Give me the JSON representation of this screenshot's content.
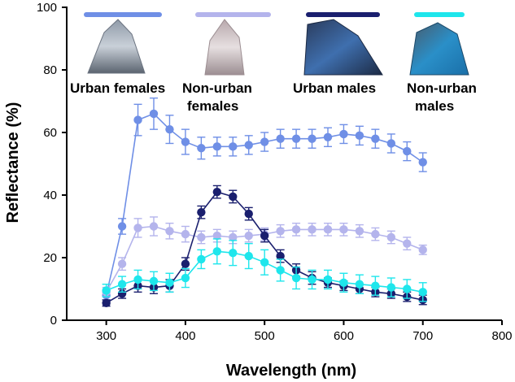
{
  "chart_data": {
    "type": "line",
    "xlabel": "Wavelength (nm)",
    "ylabel": "Reflectance (%)",
    "xlim": [
      250,
      800
    ],
    "ylim": [
      0,
      100
    ],
    "xticks": [
      300,
      400,
      500,
      600,
      700,
      800
    ],
    "yticks": [
      0,
      20,
      40,
      60,
      80,
      100
    ],
    "grid": false,
    "x": [
      300,
      320,
      340,
      360,
      380,
      400,
      420,
      440,
      460,
      480,
      500,
      520,
      540,
      560,
      580,
      600,
      620,
      640,
      660,
      680,
      700
    ],
    "series": [
      {
        "name": "Urban females",
        "color": "#6f8fe6",
        "values": [
          8,
          30,
          64,
          66,
          61,
          57,
          55,
          55.5,
          55.5,
          56,
          57,
          58,
          58,
          58,
          58.5,
          59.5,
          59,
          58,
          56.5,
          54,
          50.5
        ],
        "errors": [
          1.5,
          2.5,
          5,
          5,
          4.5,
          4,
          3.5,
          3,
          3,
          3,
          3,
          3,
          3,
          3,
          3,
          3,
          3,
          3,
          3,
          3,
          3
        ]
      },
      {
        "name": "Non-urban females",
        "color": "#b4b4ec",
        "values": [
          9,
          18,
          29.5,
          30,
          28.5,
          27.5,
          26.5,
          27,
          26.5,
          27,
          27.5,
          28.5,
          29,
          29,
          29,
          29,
          28.5,
          27.5,
          26.5,
          24.5,
          22.5
        ],
        "errors": [
          1.5,
          2,
          3,
          3,
          2.5,
          2.5,
          2,
          2,
          2,
          2,
          2,
          2,
          2,
          2,
          2,
          2,
          2,
          2,
          2,
          2,
          1.5
        ]
      },
      {
        "name": "Urban males",
        "color": "#1a1f6e",
        "values": [
          5.5,
          8.5,
          11,
          10.5,
          11,
          18,
          34.5,
          41,
          39.5,
          34,
          27,
          20.5,
          16,
          13.5,
          12,
          11,
          10,
          9,
          8.5,
          7.5,
          6.5
        ],
        "errors": [
          1,
          1.5,
          2,
          2,
          2,
          2,
          2,
          2,
          2,
          2,
          2,
          2,
          2,
          2,
          1.5,
          1.5,
          1.5,
          1.5,
          1.5,
          1.5,
          1.5
        ]
      },
      {
        "name": "Non-urban males",
        "color": "#1ee6ec",
        "values": [
          9.5,
          11.5,
          13,
          12.5,
          12,
          13.5,
          19.5,
          22,
          21.5,
          20.5,
          18.5,
          16,
          13.5,
          13,
          13,
          12,
          11.5,
          11,
          10.5,
          10,
          9
        ],
        "errors": [
          2,
          2.5,
          3,
          3,
          3,
          3,
          3,
          4,
          4,
          4,
          4,
          3.5,
          3.5,
          3,
          3,
          3,
          3,
          3,
          3,
          3,
          3
        ]
      }
    ],
    "legend": [
      {
        "label": "Urban females",
        "color": "#6f8fe6",
        "swatch": "scale-patch-urban-female"
      },
      {
        "label": "Non-urban\nfemales",
        "color": "#b4b4ec",
        "swatch": "scale-patch-nonurban-female"
      },
      {
        "label": "Urban males",
        "color": "#1a1f6e",
        "swatch": "scale-patch-urban-male"
      },
      {
        "label": "Non-urban\nmales",
        "color": "#1ee6ec",
        "swatch": "scale-patch-nonurban-male"
      }
    ]
  }
}
